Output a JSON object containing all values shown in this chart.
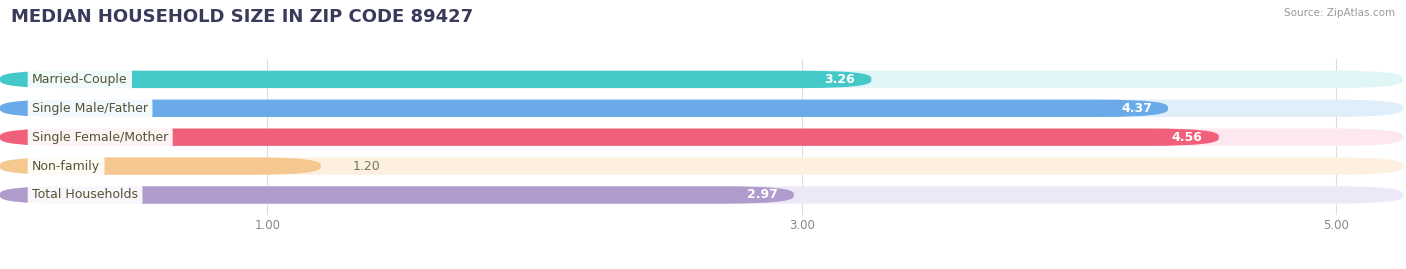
{
  "title": "MEDIAN HOUSEHOLD SIZE IN ZIP CODE 89427",
  "source": "Source: ZipAtlas.com",
  "categories": [
    "Married-Couple",
    "Single Male/Father",
    "Single Female/Mother",
    "Non-family",
    "Total Households"
  ],
  "values": [
    3.26,
    4.37,
    4.56,
    1.2,
    2.97
  ],
  "bar_colors": [
    "#45C8C8",
    "#6AAAE8",
    "#F0607A",
    "#F5C890",
    "#B09CCC"
  ],
  "bar_bg_colors": [
    "#E0F5F5",
    "#E0EEFA",
    "#FDE8F0",
    "#FDF0E0",
    "#EDE8F8"
  ],
  "label_colors": [
    "#888822",
    "#888822",
    "#888822",
    "#888822",
    "#888822"
  ],
  "xlim": [
    0.0,
    5.25
  ],
  "xmin": 0.0,
  "xticks": [
    1.0,
    3.0,
    5.0
  ],
  "xtick_labels": [
    "1.00",
    "3.00",
    "5.00"
  ],
  "title_fontsize": 13,
  "label_fontsize": 9,
  "value_fontsize": 9,
  "background_color": "#ffffff"
}
